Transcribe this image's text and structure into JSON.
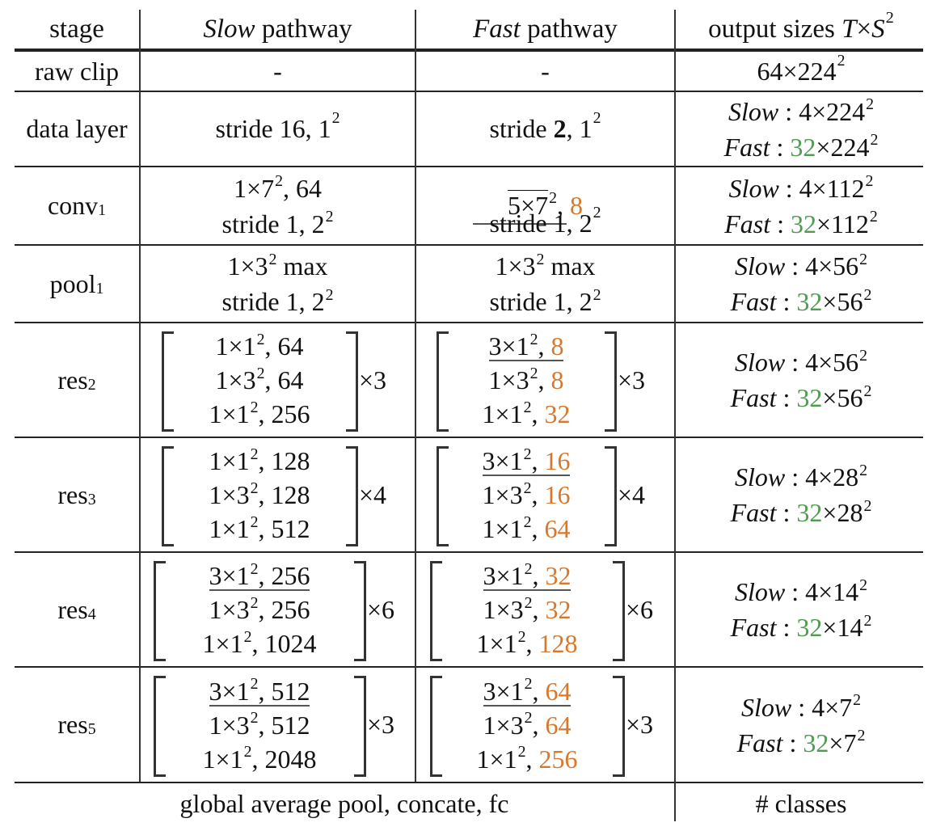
{
  "header": {
    "stage": "stage",
    "slow_i": "Slow",
    "slow_rest": " pathway",
    "fast_i": "Fast",
    "fast_rest": " pathway",
    "out_pre": "output sizes ",
    "out_T": "T",
    "out_x": "×",
    "out_S": "S",
    "out_exp": "2"
  },
  "rows": {
    "raw_clip": {
      "stage": "raw clip",
      "slow": "-",
      "fast": "-",
      "out_base": "64×224",
      "out_exp": "2"
    },
    "data_layer": {
      "stage": "data layer",
      "slow_a": "stride 16, 1",
      "slow_exp": "2",
      "fast_a": "stride ",
      "fast_bold": "2",
      "fast_b": ", 1",
      "fast_exp": "2",
      "out_slow_label": "Slow",
      "out_slow_val": " : 4×224",
      "out_slow_exp": "2",
      "out_fast_label": "Fast",
      "out_fast_sep": " : ",
      "out_fast_green": "32",
      "out_fast_val": "×224",
      "out_fast_exp": "2"
    },
    "conv1": {
      "stage_base": "conv",
      "stage_sub": "1",
      "slow_l1_a": "1×7",
      "slow_l1_exp": "2",
      "slow_l1_b": ", 64",
      "slow_l2_a": "stride 1, 2",
      "slow_l2_exp": "2",
      "fast_l1_a": "5×7",
      "fast_l1_exp": "2",
      "fast_l1_b": ", ",
      "fast_l1_orange": "8",
      "fast_l2_a": "stride 1, 2",
      "fast_l2_exp": "2",
      "out_slow_label": "Slow",
      "out_slow_val": " : 4×112",
      "out_slow_exp": "2",
      "out_fast_label": "Fast",
      "out_fast_sep": " : ",
      "out_fast_green": "32",
      "out_fast_val": "×112",
      "out_fast_exp": "2"
    },
    "pool1": {
      "stage_base": "pool",
      "stage_sub": "1",
      "slow_l1_a": "1×3",
      "slow_l1_exp": "2",
      "slow_l1_b": " max",
      "slow_l2_a": "stride 1, 2",
      "slow_l2_exp": "2",
      "fast_l1_a": "1×3",
      "fast_l1_exp": "2",
      "fast_l1_b": " max",
      "fast_l2_a": "stride 1, 2",
      "fast_l2_exp": "2",
      "out_slow_label": "Slow",
      "out_slow_val": " : 4×56",
      "out_slow_exp": "2",
      "out_fast_label": "Fast",
      "out_fast_sep": " : ",
      "out_fast_green": "32",
      "out_fast_val": "×56",
      "out_fast_exp": "2"
    },
    "res2": {
      "stage_base": "res",
      "stage_sub": "2",
      "slow": [
        {
          "a": "1×1",
          "b": ", 64"
        },
        {
          "a": "1×3",
          "b": ", 64"
        },
        {
          "a": "1×1",
          "b": ", 256"
        }
      ],
      "slow_mult": "×3",
      "fast": [
        {
          "a": "3×1",
          "b": ", ",
          "o": "8"
        },
        {
          "a": "1×3",
          "b": ", ",
          "o": "8"
        },
        {
          "a": "1×1",
          "b": ", ",
          "o": "32"
        }
      ],
      "fast_mult": "×3",
      "out_slow_label": "Slow",
      "out_slow_val": " : 4×56",
      "out_slow_exp": "2",
      "out_fast_label": "Fast",
      "out_fast_sep": " : ",
      "out_fast_green": "32",
      "out_fast_val": "×56",
      "out_fast_exp": "2"
    },
    "res3": {
      "stage_base": "res",
      "stage_sub": "3",
      "slow": [
        {
          "a": "1×1",
          "b": ", 128"
        },
        {
          "a": "1×3",
          "b": ", 128"
        },
        {
          "a": "1×1",
          "b": ", 512"
        }
      ],
      "slow_mult": "×4",
      "fast": [
        {
          "a": "3×1",
          "b": ", ",
          "o": "16"
        },
        {
          "a": "1×3",
          "b": ", ",
          "o": "16"
        },
        {
          "a": "1×1",
          "b": ", ",
          "o": "64"
        }
      ],
      "fast_mult": "×4",
      "out_slow_label": "Slow",
      "out_slow_val": " : 4×28",
      "out_slow_exp": "2",
      "out_fast_label": "Fast",
      "out_fast_sep": " : ",
      "out_fast_green": "32",
      "out_fast_val": "×28",
      "out_fast_exp": "2"
    },
    "res4": {
      "stage_base": "res",
      "stage_sub": "4",
      "slow": [
        {
          "a": "3×1",
          "b": ", 256"
        },
        {
          "a": "1×3",
          "b": ", 256"
        },
        {
          "a": "1×1",
          "b": ", 1024"
        }
      ],
      "slow_mult": "×6",
      "fast": [
        {
          "a": "3×1",
          "b": ", ",
          "o": "32"
        },
        {
          "a": "1×3",
          "b": ", ",
          "o": "32"
        },
        {
          "a": "1×1",
          "b": ", ",
          "o": "128"
        }
      ],
      "fast_mult": "×6",
      "out_slow_label": "Slow",
      "out_slow_val": " : 4×14",
      "out_slow_exp": "2",
      "out_fast_label": "Fast",
      "out_fast_sep": " : ",
      "out_fast_green": "32",
      "out_fast_val": "×14",
      "out_fast_exp": "2"
    },
    "res5": {
      "stage_base": "res",
      "stage_sub": "5",
      "slow": [
        {
          "a": "3×1",
          "b": ", 512"
        },
        {
          "a": "1×3",
          "b": ", 512"
        },
        {
          "a": "1×1",
          "b": ", 2048"
        }
      ],
      "slow_mult": "×3",
      "fast": [
        {
          "a": "3×1",
          "b": ", ",
          "o": "64"
        },
        {
          "a": "1×3",
          "b": ", ",
          "o": "64"
        },
        {
          "a": "1×1",
          "b": ", ",
          "o": "256"
        }
      ],
      "fast_mult": "×3",
      "out_slow_label": "Slow",
      "out_slow_val": " : 4×7",
      "out_slow_exp": "2",
      "out_fast_label": "Fast",
      "out_fast_sep": " : ",
      "out_fast_green": "32",
      "out_fast_val": "×7",
      "out_fast_exp": "2"
    }
  },
  "exp2": "2",
  "footer": {
    "left": "global average pool, concate, fc",
    "right": "# classes"
  },
  "colors": {
    "orange": "#d7782d",
    "green": "#4f9b4f"
  }
}
